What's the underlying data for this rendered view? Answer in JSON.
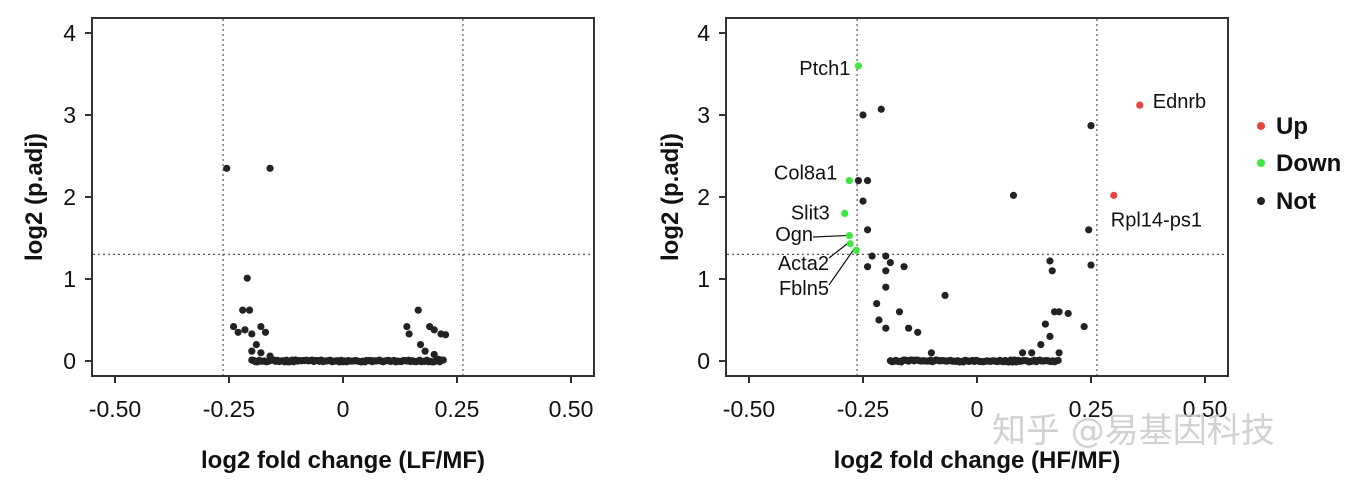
{
  "chart_data": [
    {
      "type": "scatter",
      "name": "left-volcano",
      "xlabel": "log2 fold change (LF/MF)",
      "ylabel": "log2 (p.adj)",
      "xlim": [
        -0.55,
        0.55
      ],
      "ylim": [
        -0.2,
        4.2
      ],
      "xticks": [
        -0.5,
        -0.25,
        0,
        0.25,
        0.5
      ],
      "xtick_labels": [
        "-0.50",
        "-0.25",
        "0",
        "0.25",
        "0.50"
      ],
      "yticks": [
        0,
        1,
        2,
        3,
        4
      ],
      "ytick_labels": [
        "0",
        "1",
        "2",
        "3",
        "4"
      ],
      "thresholds": {
        "x": [
          -0.263,
          0.263
        ],
        "y": 1.3
      },
      "points": [
        {
          "x": -0.255,
          "y": 2.35,
          "class": "Not"
        },
        {
          "x": -0.16,
          "y": 2.35,
          "class": "Not"
        },
        {
          "x": -0.21,
          "y": 1.01,
          "class": "Not"
        },
        {
          "x": -0.22,
          "y": 0.62,
          "class": "Not"
        },
        {
          "x": -0.205,
          "y": 0.62,
          "class": "Not"
        },
        {
          "x": -0.24,
          "y": 0.42,
          "class": "Not"
        },
        {
          "x": -0.23,
          "y": 0.35,
          "class": "Not"
        },
        {
          "x": -0.215,
          "y": 0.38,
          "class": "Not"
        },
        {
          "x": -0.2,
          "y": 0.33,
          "class": "Not"
        },
        {
          "x": -0.18,
          "y": 0.42,
          "class": "Not"
        },
        {
          "x": -0.17,
          "y": 0.35,
          "class": "Not"
        },
        {
          "x": -0.19,
          "y": 0.2,
          "class": "Not"
        },
        {
          "x": -0.2,
          "y": 0.12,
          "class": "Not"
        },
        {
          "x": -0.18,
          "y": 0.1,
          "class": "Not"
        },
        {
          "x": -0.16,
          "y": 0.06,
          "class": "Not"
        },
        {
          "x": 0.165,
          "y": 0.62,
          "class": "Not"
        },
        {
          "x": 0.14,
          "y": 0.42,
          "class": "Not"
        },
        {
          "x": 0.145,
          "y": 0.33,
          "class": "Not"
        },
        {
          "x": 0.19,
          "y": 0.42,
          "class": "Not"
        },
        {
          "x": 0.2,
          "y": 0.38,
          "class": "Not"
        },
        {
          "x": 0.215,
          "y": 0.33,
          "class": "Not"
        },
        {
          "x": 0.225,
          "y": 0.32,
          "class": "Not"
        },
        {
          "x": 0.17,
          "y": 0.2,
          "class": "Not"
        },
        {
          "x": 0.18,
          "y": 0.12,
          "class": "Not"
        },
        {
          "x": 0.2,
          "y": 0.08,
          "class": "Not"
        },
        {
          "x": 0.21,
          "y": 0.02,
          "class": "Not"
        }
      ],
      "baseline_cluster": {
        "x_from": -0.2,
        "x_to": 0.22,
        "y": 0,
        "class": "Not"
      }
    },
    {
      "type": "scatter",
      "name": "right-volcano",
      "xlabel": "log2 fold change (HF/MF)",
      "ylabel": "log2 (p.adj)",
      "xlim": [
        -0.55,
        0.55
      ],
      "ylim": [
        -0.2,
        4.2
      ],
      "xticks": [
        -0.5,
        -0.25,
        0,
        0.25,
        0.5
      ],
      "xtick_labels": [
        "-0.50",
        "-0.25",
        "0",
        "0.25",
        "0.50"
      ],
      "yticks": [
        0,
        1,
        2,
        3,
        4
      ],
      "ytick_labels": [
        "0",
        "1",
        "2",
        "3",
        "4"
      ],
      "thresholds": {
        "x": [
          -0.263,
          0.263
        ],
        "y": 1.3
      },
      "points": [
        {
          "x": -0.26,
          "y": 3.6,
          "class": "Down",
          "label": "Ptch1"
        },
        {
          "x": -0.28,
          "y": 2.2,
          "class": "Down",
          "label": "Col8a1"
        },
        {
          "x": -0.29,
          "y": 1.8,
          "class": "Down",
          "label": "Slit3"
        },
        {
          "x": -0.28,
          "y": 1.53,
          "class": "Down",
          "label": "Ogn"
        },
        {
          "x": -0.278,
          "y": 1.43,
          "class": "Down",
          "label": "Acta2"
        },
        {
          "x": -0.265,
          "y": 1.35,
          "class": "Down",
          "label": "Fbln5"
        },
        {
          "x": 0.357,
          "y": 3.12,
          "class": "Up",
          "label": "Ednrb"
        },
        {
          "x": 0.3,
          "y": 2.02,
          "class": "Up",
          "label": "Rpl14-ps1"
        },
        {
          "x": -0.26,
          "y": 2.2,
          "class": "Not"
        },
        {
          "x": -0.24,
          "y": 2.2,
          "class": "Not"
        },
        {
          "x": -0.25,
          "y": 3.0,
          "class": "Not"
        },
        {
          "x": -0.21,
          "y": 3.07,
          "class": "Not"
        },
        {
          "x": -0.25,
          "y": 1.95,
          "class": "Not"
        },
        {
          "x": -0.24,
          "y": 1.6,
          "class": "Not"
        },
        {
          "x": -0.23,
          "y": 1.28,
          "class": "Not"
        },
        {
          "x": -0.24,
          "y": 1.15,
          "class": "Not"
        },
        {
          "x": -0.2,
          "y": 1.28,
          "class": "Not"
        },
        {
          "x": -0.19,
          "y": 1.2,
          "class": "Not"
        },
        {
          "x": -0.2,
          "y": 1.1,
          "class": "Not"
        },
        {
          "x": -0.16,
          "y": 1.15,
          "class": "Not"
        },
        {
          "x": -0.2,
          "y": 0.9,
          "class": "Not"
        },
        {
          "x": -0.22,
          "y": 0.7,
          "class": "Not"
        },
        {
          "x": -0.215,
          "y": 0.5,
          "class": "Not"
        },
        {
          "x": -0.2,
          "y": 0.4,
          "class": "Not"
        },
        {
          "x": -0.17,
          "y": 0.6,
          "class": "Not"
        },
        {
          "x": -0.15,
          "y": 0.4,
          "class": "Not"
        },
        {
          "x": -0.13,
          "y": 0.35,
          "class": "Not"
        },
        {
          "x": -0.1,
          "y": 0.1,
          "class": "Not"
        },
        {
          "x": -0.07,
          "y": 0.8,
          "class": "Not"
        },
        {
          "x": 0.08,
          "y": 2.02,
          "class": "Not"
        },
        {
          "x": 0.25,
          "y": 2.87,
          "class": "Not"
        },
        {
          "x": 0.245,
          "y": 1.6,
          "class": "Not"
        },
        {
          "x": 0.25,
          "y": 1.17,
          "class": "Not"
        },
        {
          "x": 0.16,
          "y": 1.22,
          "class": "Not"
        },
        {
          "x": 0.165,
          "y": 1.1,
          "class": "Not"
        },
        {
          "x": 0.17,
          "y": 0.6,
          "class": "Not"
        },
        {
          "x": 0.18,
          "y": 0.6,
          "class": "Not"
        },
        {
          "x": 0.2,
          "y": 0.58,
          "class": "Not"
        },
        {
          "x": 0.235,
          "y": 0.42,
          "class": "Not"
        },
        {
          "x": 0.15,
          "y": 0.45,
          "class": "Not"
        },
        {
          "x": 0.16,
          "y": 0.3,
          "class": "Not"
        },
        {
          "x": 0.14,
          "y": 0.2,
          "class": "Not"
        },
        {
          "x": 0.1,
          "y": 0.1,
          "class": "Not"
        },
        {
          "x": 0.12,
          "y": 0.1,
          "class": "Not"
        },
        {
          "x": 0.18,
          "y": 0.1,
          "class": "Not"
        }
      ],
      "baseline_cluster": {
        "x_from": -0.19,
        "x_to": 0.18,
        "y": 0,
        "class": "Not"
      }
    }
  ],
  "legend": {
    "placement": "right",
    "items": [
      {
        "label": "Up",
        "color": "#e8433e"
      },
      {
        "label": "Down",
        "color": "#3ee63e"
      },
      {
        "label": "Not",
        "color": "#222222"
      }
    ]
  },
  "colors": {
    "Up": "#e8433e",
    "Down": "#3ee63e",
    "Not": "#222222"
  },
  "watermark": "知乎 @易基因科技"
}
